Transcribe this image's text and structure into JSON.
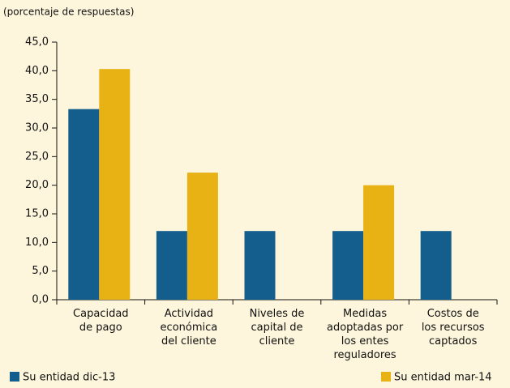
{
  "chart_data": {
    "type": "bar",
    "subtitle": "(porcentaje de respuestas)",
    "categories": [
      "Capacidad\nde pago",
      "Actividad\neconómica\ndel cliente",
      "Niveles de\ncapital de\ncliente",
      "Medidas\nadoptadas por\nlos entes\nreguladores",
      "Costos de\nlos recursos\ncaptados"
    ],
    "series": [
      {
        "name": "Su entidad dic-13",
        "color": "#135e8c",
        "values": [
          33.3,
          12,
          12,
          12,
          12
        ]
      },
      {
        "name": "Su entidad mar-14",
        "color": "#e8b214",
        "values": [
          40.3,
          22.2,
          0,
          20,
          0
        ]
      }
    ],
    "ylim": [
      0,
      45
    ],
    "yticks": [
      {
        "value": 0,
        "label": "0,0"
      },
      {
        "value": 5,
        "label": "5,0"
      },
      {
        "value": 10,
        "label": "10,0"
      },
      {
        "value": 15,
        "label": "15,0"
      },
      {
        "value": 20,
        "label": "20,0"
      },
      {
        "value": 25,
        "label": "25,0"
      },
      {
        "value": 30,
        "label": "30,0"
      },
      {
        "value": 35,
        "label": "35,0"
      },
      {
        "value": 40,
        "label": "40,0"
      },
      {
        "value": 45,
        "label": "45,0"
      }
    ],
    "grid": false
  }
}
